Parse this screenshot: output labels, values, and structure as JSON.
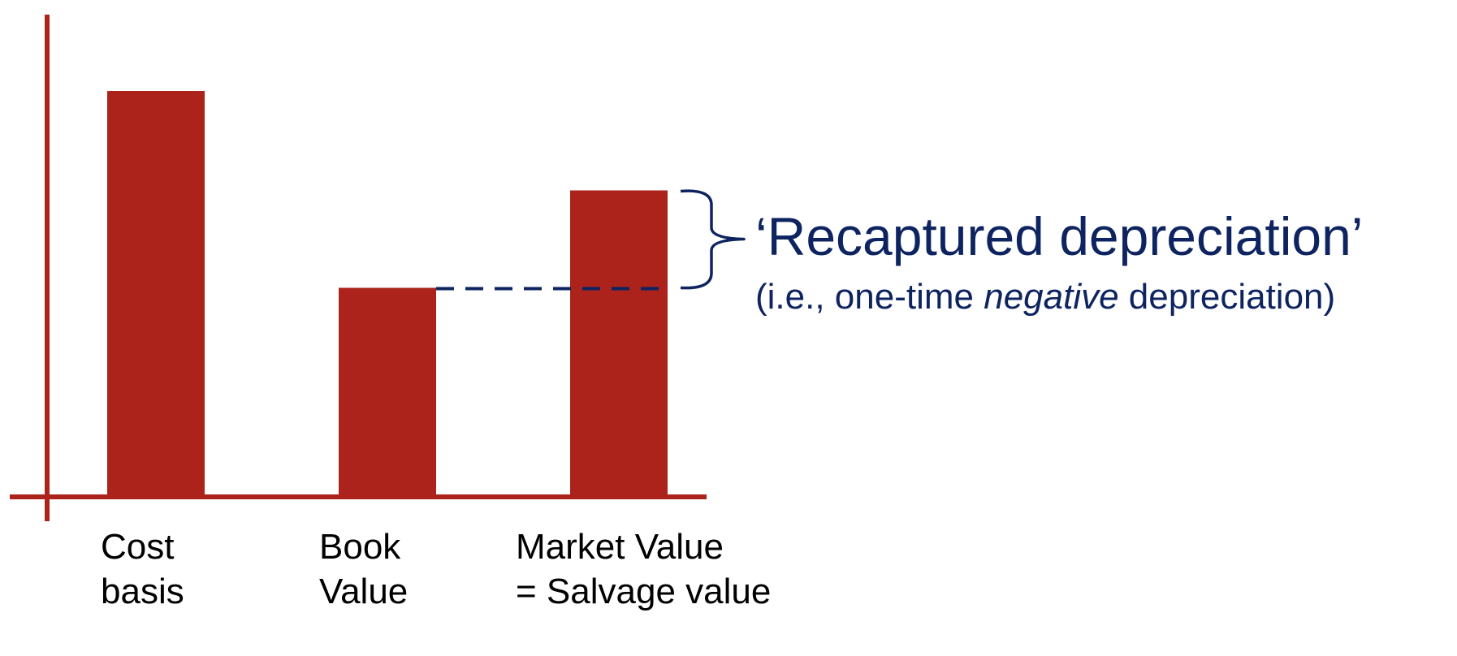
{
  "chart_data": {
    "type": "bar",
    "categories": [
      "Cost basis",
      "Book Value",
      "Market Value = Salvage value"
    ],
    "category_label_lines": [
      [
        "Cost",
        "basis"
      ],
      [
        "Book",
        "Value"
      ],
      [
        "Market Value",
        "= Salvage value"
      ]
    ],
    "values": [
      100,
      51.5,
      75.5
    ],
    "ylim": [
      0,
      120
    ],
    "grid": false,
    "title": "",
    "xlabel": "",
    "ylabel": "",
    "annotation": {
      "title": "‘Recaptured depreciation’",
      "subtitle_before": "(i.e., one-time ",
      "subtitle_emphasis": "negative",
      "subtitle_after": " depreciation)",
      "from_category": 1,
      "to_category": 2
    }
  },
  "colors": {
    "bar": "#ab231b",
    "axis": "#ab231b",
    "annotation": "#0e2460",
    "label": "#000000"
  }
}
